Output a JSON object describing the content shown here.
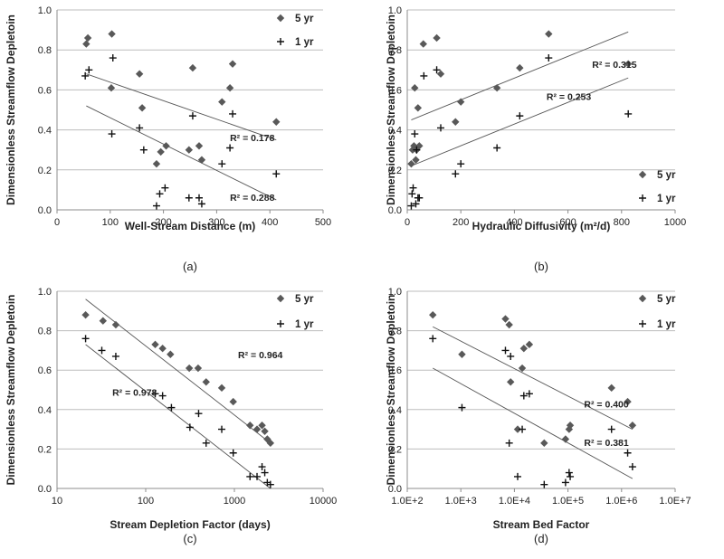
{
  "chart_data": [
    {
      "type": "scatter",
      "caption": "(a)",
      "xlabel": "Well-Stream Distance (m)",
      "ylabel": "Dimensionless Streamflow Depletoin",
      "xscale": "linear",
      "xlim": [
        0,
        500
      ],
      "ylim": [
        0,
        1.0
      ],
      "xticks": [
        "0",
        "100",
        "200",
        "300",
        "400",
        "500"
      ],
      "yticks": [
        "0.0",
        "0.2",
        "0.4",
        "0.6",
        "0.8",
        "1.0"
      ],
      "grid": "horizontal",
      "legend_position": "top-right",
      "series": [
        {
          "name": "5 yr",
          "marker": "diamond",
          "color": "#595959",
          "points": [
            [
              55,
              0.83
            ],
            [
              58,
              0.86
            ],
            [
              103,
              0.88
            ],
            [
              102,
              0.61
            ],
            [
              155,
              0.68
            ],
            [
              160,
              0.51
            ],
            [
              187,
              0.23
            ],
            [
              195,
              0.29
            ],
            [
              205,
              0.32
            ],
            [
              248,
              0.3
            ],
            [
              255,
              0.71
            ],
            [
              267,
              0.32
            ],
            [
              272,
              0.25
            ],
            [
              310,
              0.54
            ],
            [
              325,
              0.61
            ],
            [
              330,
              0.73
            ],
            [
              412,
              0.44
            ]
          ],
          "trendline": [
            [
              55,
              0.68
            ],
            [
              412,
              0.35
            ]
          ],
          "r2_label": "R² = 0.178",
          "r2_pos": [
            325,
            0.345
          ]
        },
        {
          "name": "1 yr",
          "marker": "plus",
          "color": "#111111",
          "points": [
            [
              53,
              0.67
            ],
            [
              60,
              0.7
            ],
            [
              105,
              0.76
            ],
            [
              103,
              0.38
            ],
            [
              155,
              0.41
            ],
            [
              163,
              0.3
            ],
            [
              187,
              0.02
            ],
            [
              193,
              0.08
            ],
            [
              203,
              0.11
            ],
            [
              248,
              0.06
            ],
            [
              255,
              0.47
            ],
            [
              267,
              0.06
            ],
            [
              272,
              0.03
            ],
            [
              310,
              0.23
            ],
            [
              325,
              0.31
            ],
            [
              330,
              0.48
            ],
            [
              412,
              0.18
            ]
          ],
          "trendline": [
            [
              55,
              0.52
            ],
            [
              412,
              0.05
            ]
          ],
          "r2_label": "R² = 0.288",
          "r2_pos": [
            325,
            0.045
          ]
        }
      ]
    },
    {
      "type": "scatter",
      "caption": "(b)",
      "xlabel": "Hydraulic Diffusivity (m²/d)",
      "ylabel": "Dimensionless Streamflow Depletoin",
      "xscale": "linear",
      "xlim": [
        0,
        1000
      ],
      "ylim": [
        0,
        1.0
      ],
      "xticks": [
        "0",
        "200",
        "400",
        "600",
        "800",
        "1000"
      ],
      "yticks": [
        "0.0",
        "0.2",
        "0.4",
        "0.6",
        "0.8",
        "1.0"
      ],
      "grid": "horizontal",
      "legend_position": "bottom-right",
      "series": [
        {
          "name": "5 yr",
          "marker": "diamond",
          "color": "#595959",
          "points": [
            [
              15,
              0.23
            ],
            [
              20,
              0.3
            ],
            [
              25,
              0.32
            ],
            [
              28,
              0.61
            ],
            [
              32,
              0.25
            ],
            [
              35,
              0.3
            ],
            [
              40,
              0.51
            ],
            [
              45,
              0.32
            ],
            [
              60,
              0.83
            ],
            [
              110,
              0.86
            ],
            [
              125,
              0.68
            ],
            [
              180,
              0.44
            ],
            [
              200,
              0.54
            ],
            [
              335,
              0.61
            ],
            [
              420,
              0.71
            ],
            [
              528,
              0.88
            ],
            [
              825,
              0.73
            ]
          ],
          "trendline": [
            [
              15,
              0.45
            ],
            [
              825,
              0.89
            ]
          ],
          "r2_label": "R² = 0.315",
          "r2_pos": [
            690,
            0.71
          ]
        },
        {
          "name": "1 yr",
          "marker": "plus",
          "color": "#111111",
          "points": [
            [
              15,
              0.02
            ],
            [
              18,
              0.08
            ],
            [
              22,
              0.11
            ],
            [
              28,
              0.38
            ],
            [
              32,
              0.03
            ],
            [
              35,
              0.3
            ],
            [
              40,
              0.06
            ],
            [
              45,
              0.06
            ],
            [
              62,
              0.67
            ],
            [
              110,
              0.7
            ],
            [
              125,
              0.41
            ],
            [
              180,
              0.18
            ],
            [
              200,
              0.23
            ],
            [
              335,
              0.31
            ],
            [
              420,
              0.47
            ],
            [
              528,
              0.76
            ],
            [
              825,
              0.48
            ]
          ],
          "trendline": [
            [
              15,
              0.22
            ],
            [
              825,
              0.66
            ]
          ],
          "r2_label": "R² = 0.253",
          "r2_pos": [
            520,
            0.55
          ]
        }
      ]
    },
    {
      "type": "scatter",
      "caption": "(c)",
      "xlabel": "Stream Depletion Factor (days)",
      "ylabel": "Dimensionless Streamflow Depletoin",
      "xscale": "log",
      "xlim": [
        10,
        10000
      ],
      "ylim": [
        0,
        1.0
      ],
      "xticks": [
        "10",
        "100",
        "1000",
        "10000"
      ],
      "yticks": [
        "0.0",
        "0.2",
        "0.4",
        "0.6",
        "0.8",
        "1.0"
      ],
      "grid": "horizontal",
      "legend_position": "top-right",
      "series": [
        {
          "name": "5 yr",
          "marker": "diamond",
          "color": "#595959",
          "points": [
            [
              21,
              0.88
            ],
            [
              33,
              0.85
            ],
            [
              46,
              0.83
            ],
            [
              128,
              0.73
            ],
            [
              155,
              0.71
            ],
            [
              190,
              0.68
            ],
            [
              310,
              0.61
            ],
            [
              390,
              0.61
            ],
            [
              480,
              0.54
            ],
            [
              720,
              0.51
            ],
            [
              970,
              0.44
            ],
            [
              1500,
              0.32
            ],
            [
              1800,
              0.3
            ],
            [
              2050,
              0.32
            ],
            [
              2200,
              0.29
            ],
            [
              2350,
              0.25
            ],
            [
              2550,
              0.23
            ]
          ],
          "trendline": [
            [
              21,
              0.96
            ],
            [
              2550,
              0.23
            ]
          ],
          "r2_label": "R² = 0.964",
          "r2_pos": [
            1100,
            0.66
          ]
        },
        {
          "name": "1 yr",
          "marker": "plus",
          "color": "#111111",
          "points": [
            [
              21,
              0.76
            ],
            [
              32,
              0.7
            ],
            [
              46,
              0.67
            ],
            [
              128,
              0.48
            ],
            [
              155,
              0.47
            ],
            [
              195,
              0.41
            ],
            [
              315,
              0.31
            ],
            [
              395,
              0.38
            ],
            [
              480,
              0.23
            ],
            [
              720,
              0.3
            ],
            [
              970,
              0.18
            ],
            [
              1500,
              0.06
            ],
            [
              1800,
              0.06
            ],
            [
              2050,
              0.11
            ],
            [
              2200,
              0.08
            ],
            [
              2350,
              0.03
            ],
            [
              2550,
              0.02
            ]
          ],
          "trendline": [
            [
              21,
              0.73
            ],
            [
              2550,
              0.0
            ]
          ],
          "r2_label": "R² = 0.978",
          "r2_pos": [
            42,
            0.47
          ]
        }
      ]
    },
    {
      "type": "scatter",
      "caption": "(d)",
      "xlabel": "Stream Bed Factor",
      "ylabel": "Dimensionless Streamflow Depletoin",
      "xscale": "log",
      "xlim": [
        100,
        10000000
      ],
      "ylim": [
        0,
        1.0
      ],
      "xticks": [
        "1.0E+2",
        "1.0E+3",
        "1.0E+4",
        "1.0E+5",
        "1.0E+6",
        "1.0E+7"
      ],
      "yticks": [
        "0.0",
        "0.2",
        "0.4",
        "0.6",
        "0.8",
        "1.0"
      ],
      "grid": "horizontal",
      "legend_position": "top-right",
      "series": [
        {
          "name": "5 yr",
          "marker": "diamond",
          "color": "#595959",
          "points": [
            [
              300,
              0.88
            ],
            [
              1050,
              0.68
            ],
            [
              6800,
              0.86
            ],
            [
              8000,
              0.83
            ],
            [
              8500,
              0.54
            ],
            [
              11500,
              0.3
            ],
            [
              14000,
              0.61
            ],
            [
              15000,
              0.71
            ],
            [
              19000,
              0.73
            ],
            [
              36000,
              0.23
            ],
            [
              90000,
              0.25
            ],
            [
              105000,
              0.3
            ],
            [
              110000,
              0.32
            ],
            [
              650000,
              0.51
            ],
            [
              1300000,
              0.44
            ],
            [
              1600000,
              0.32
            ]
          ],
          "trendline": [
            [
              300,
              0.82
            ],
            [
              1600000,
              0.3
            ]
          ],
          "r2_label": "R² = 0.400",
          "r2_pos": [
            200000,
            0.41
          ]
        },
        {
          "name": "1 yr",
          "marker": "plus",
          "color": "#111111",
          "points": [
            [
              300,
              0.76
            ],
            [
              1050,
              0.41
            ],
            [
              6800,
              0.7
            ],
            [
              8000,
              0.23
            ],
            [
              8500,
              0.67
            ],
            [
              11500,
              0.06
            ],
            [
              14000,
              0.3
            ],
            [
              15000,
              0.47
            ],
            [
              19000,
              0.48
            ],
            [
              36000,
              0.02
            ],
            [
              90000,
              0.03
            ],
            [
              105000,
              0.08
            ],
            [
              110000,
              0.06
            ],
            [
              650000,
              0.3
            ],
            [
              1300000,
              0.18
            ],
            [
              1600000,
              0.11
            ]
          ],
          "trendline": [
            [
              300,
              0.61
            ],
            [
              1600000,
              0.05
            ]
          ],
          "r2_label": "R² = 0.381",
          "r2_pos": [
            200000,
            0.215
          ]
        }
      ]
    }
  ]
}
